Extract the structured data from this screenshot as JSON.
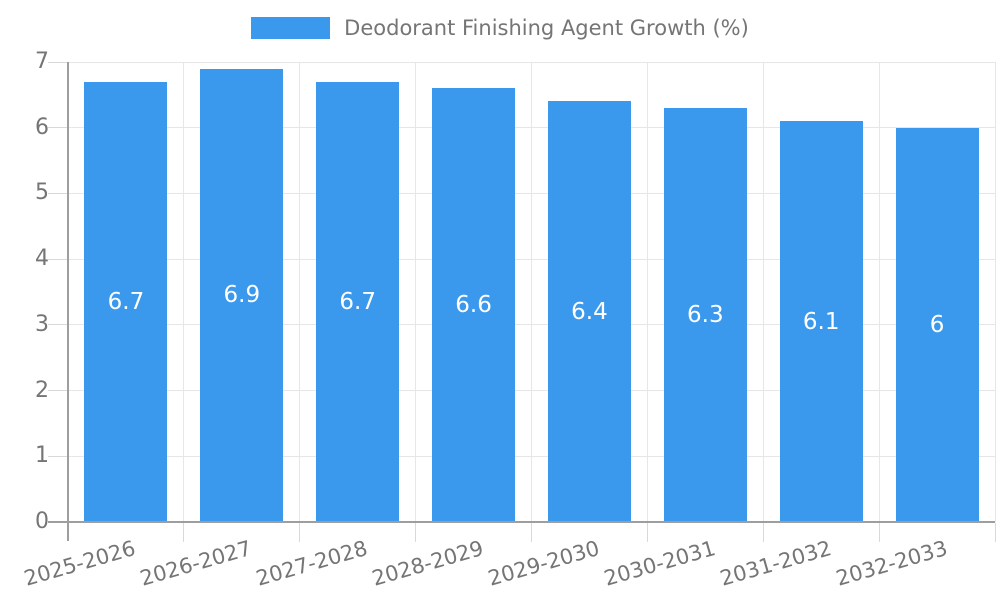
{
  "chart_data": {
    "type": "bar",
    "title": "Deodorant Finishing Agent Growth (%)",
    "series_name": "Deodorant Finishing Agent Growth (%)",
    "categories": [
      "2025-2026",
      "2026-2027",
      "2027-2028",
      "2028-2029",
      "2029-2030",
      "2030-2031",
      "2031-2032",
      "2032-2033"
    ],
    "values": [
      6.7,
      6.9,
      6.7,
      6.6,
      6.4,
      6.3,
      6.1,
      6
    ],
    "bar_labels": [
      "6.7",
      "6.9",
      "6.7",
      "6.6",
      "6.4",
      "6.3",
      "6.1",
      "6"
    ],
    "xlabel": "",
    "ylabel": "",
    "ylim": [
      0,
      7
    ],
    "yticks": [
      "0",
      "1",
      "2",
      "3",
      "4",
      "5",
      "6",
      "7"
    ],
    "grid": true,
    "legend_position": "top",
    "colors": {
      "bar": "#3A99EC",
      "axis_line": "#9e9e9e",
      "gridline": "#e6e6e6",
      "tick": "#d9d9d9",
      "axis_text": "#757575",
      "bar_label_text": "#ffffff",
      "background": "#ffffff"
    }
  }
}
